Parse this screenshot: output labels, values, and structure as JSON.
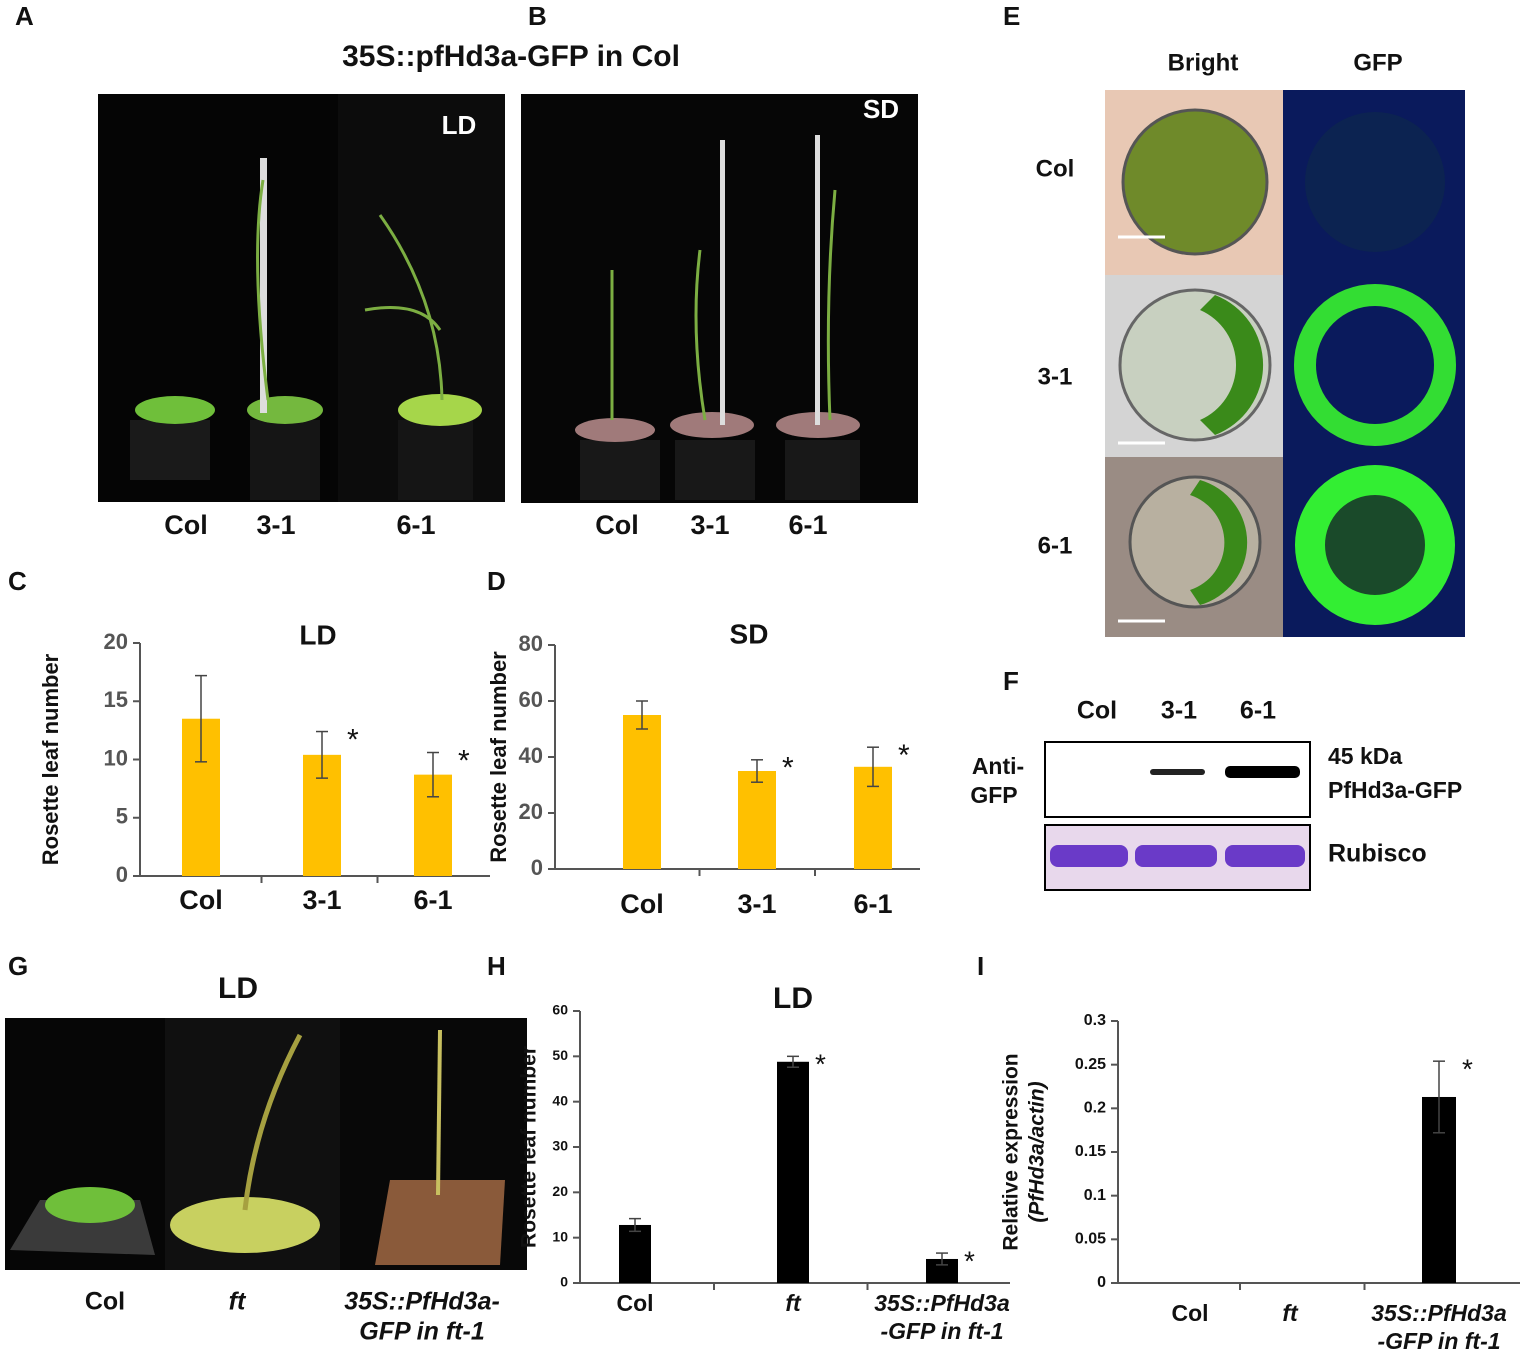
{
  "panel_labels": [
    "A",
    "B",
    "C",
    "D",
    "E",
    "F",
    "G",
    "H",
    "I"
  ],
  "panel_a": {
    "title": "35S::pfHd3a-GFP in Col",
    "condition": "LD",
    "labels": [
      "Col",
      "3-1",
      "6-1"
    ]
  },
  "panel_b": {
    "condition": "SD",
    "labels": [
      "Col",
      "3-1",
      "6-1"
    ]
  },
  "panel_e": {
    "columns": [
      "Bright",
      "GFP"
    ],
    "rows": [
      "Col",
      "3-1",
      "6-1"
    ]
  },
  "panel_f": {
    "lanes": [
      "Col",
      "3-1",
      "6-1"
    ],
    "antibody": [
      "Anti-",
      "GFP"
    ],
    "band_label": [
      "45 kDa",
      "PfHd3a-GFP"
    ],
    "loading": "Rubisco"
  },
  "panel_g": {
    "title": "LD",
    "labels": [
      [
        "Col"
      ],
      [
        "ft"
      ],
      [
        "35S::PfHd3a-",
        "GFP in ft-1"
      ]
    ]
  },
  "chart_data": [
    {
      "type": "bar",
      "title": "LD",
      "y_label": [
        "Rosette leaf number"
      ],
      "categories": [
        [
          "Col"
        ],
        [
          "3-1"
        ],
        [
          "6-1"
        ]
      ],
      "values": [
        13.5,
        10.4,
        8.7
      ],
      "errors": [
        3.7,
        2.0,
        1.9
      ],
      "value_annotations": [
        null,
        "*",
        "*"
      ],
      "color": "#ffc000",
      "ylim": [
        0,
        20
      ],
      "yticks": [
        0,
        5,
        10,
        15,
        20
      ]
    },
    {
      "type": "bar",
      "title": "SD",
      "y_label": [
        "Rosette leaf number"
      ],
      "categories": [
        [
          "Col"
        ],
        [
          "3-1"
        ],
        [
          "6-1"
        ]
      ],
      "values": [
        55,
        35,
        36.5
      ],
      "errors": [
        5,
        4,
        7
      ],
      "value_annotations": [
        null,
        "*",
        "*"
      ],
      "color": "#ffc000",
      "ylim": [
        0,
        80
      ],
      "yticks": [
        0,
        20,
        40,
        60,
        80
      ]
    },
    {
      "type": "bar",
      "title": "LD",
      "y_label": [
        "Rosette leaf number"
      ],
      "categories": [
        [
          "Col"
        ],
        [
          "ft"
        ],
        [
          "35S::PfHd3a",
          "-GFP in ft-1"
        ]
      ],
      "values": [
        12.8,
        48.8,
        5.3
      ],
      "errors": [
        1.4,
        1.2,
        1.3
      ],
      "value_annotations": [
        null,
        "*",
        "*"
      ],
      "color": "#000000",
      "ylim": [
        0,
        60
      ],
      "yticks": [
        0,
        10,
        20,
        30,
        40,
        50,
        60
      ]
    },
    {
      "type": "bar",
      "y_label": [
        "Relative expression",
        "(PfHd3a/actin)"
      ],
      "categories": [
        [
          "Col"
        ],
        [
          "ft"
        ],
        [
          "35S::PfHd3a",
          "-GFP in ft-1"
        ]
      ],
      "values": [
        0,
        0,
        0.213
      ],
      "errors": [
        null,
        null,
        0.041
      ],
      "value_annotations": [
        null,
        null,
        "*"
      ],
      "color": "#000000",
      "ylim": [
        0,
        0.3
      ],
      "yticks": [
        0,
        0.05,
        0.1,
        0.15,
        0.2,
        0.25,
        0.3
      ]
    }
  ]
}
